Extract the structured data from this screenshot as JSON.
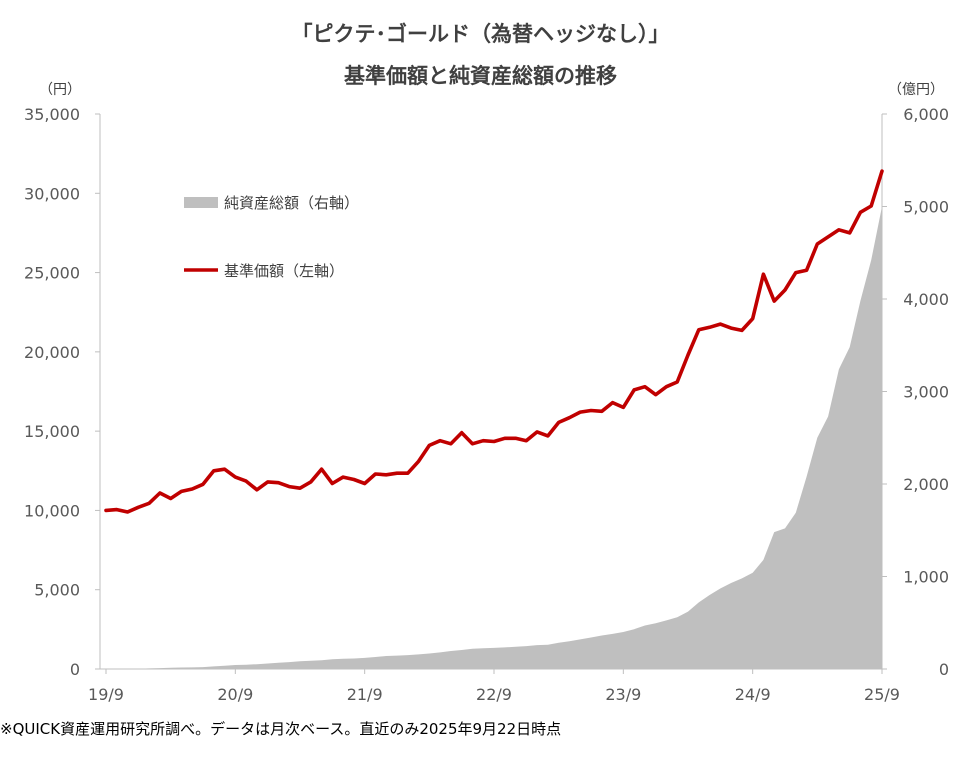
{
  "title_line1": "「ピクテ･ゴールド（為替ヘッジなし）」",
  "title_line2": "基準価額と純資産総額の推移",
  "left_unit": "（円）",
  "right_unit": "（億円）",
  "footnote": "※QUICK資産運用研究所調べ。データは月次ベース。直近のみ2025年9月22日時点",
  "colors": {
    "nav": "#C00000",
    "aum": "#BFBFBF",
    "axis": "#BFBFBF",
    "text": "#404040"
  },
  "chart_data": {
    "type": "line",
    "xlabel": "",
    "x_tick_labels": [
      "19/9",
      "20/9",
      "21/9",
      "22/9",
      "23/9",
      "24/9",
      "25/9"
    ],
    "legend": [
      "純資産総額（右軸）",
      "基準価額（左軸）"
    ],
    "grid": false,
    "left_axis": {
      "ylim": [
        0,
        35000
      ],
      "ticks": [
        "0",
        "5,000",
        "10,000",
        "15,000",
        "20,000",
        "25,000",
        "30,000",
        "35,000"
      ]
    },
    "right_axis": {
      "ylim": [
        0,
        6000
      ],
      "ticks": [
        "0",
        "1,000",
        "2,000",
        "3,000",
        "4,000",
        "5,000",
        "6,000"
      ]
    },
    "series": [
      {
        "name": "基準価額（左軸）",
        "type": "line",
        "axis": "left",
        "values": [
          10000,
          10050,
          9900,
          10200,
          10450,
          11100,
          10750,
          11200,
          11350,
          11650,
          12500,
          12600,
          12100,
          11850,
          11300,
          11800,
          11750,
          11500,
          11400,
          11800,
          12600,
          11700,
          12100,
          11950,
          11700,
          12300,
          12250,
          12350,
          12350,
          13100,
          14100,
          14400,
          14200,
          14900,
          14200,
          14400,
          14350,
          14550,
          14550,
          14400,
          14950,
          14700,
          15550,
          15850,
          16200,
          16300,
          16250,
          16800,
          16500,
          17600,
          17800,
          17300,
          17800,
          18100,
          19800,
          21400,
          21550,
          21750,
          21500,
          21350,
          22100,
          24900,
          23200,
          23900,
          25000,
          25150,
          26800,
          27250,
          27700,
          27500,
          28800,
          29200,
          31400
        ]
      },
      {
        "name": "純資産総額（右軸）",
        "type": "area",
        "axis": "right",
        "values": [
          0,
          1,
          2,
          3,
          6,
          10,
          14,
          16,
          17,
          20,
          28,
          36,
          43,
          47,
          52,
          60,
          67,
          75,
          84,
          90,
          95,
          105,
          110,
          113,
          120,
          130,
          140,
          145,
          150,
          158,
          168,
          180,
          195,
          205,
          218,
          225,
          228,
          234,
          240,
          248,
          258,
          262,
          284,
          300,
          320,
          340,
          362,
          380,
          400,
          430,
          470,
          495,
          525,
          560,
          620,
          720,
          800,
          870,
          930,
          980,
          1040,
          1180,
          1480,
          1520,
          1690,
          2080,
          2500,
          2730,
          3240,
          3480,
          3980,
          4420,
          5000
        ]
      }
    ]
  }
}
